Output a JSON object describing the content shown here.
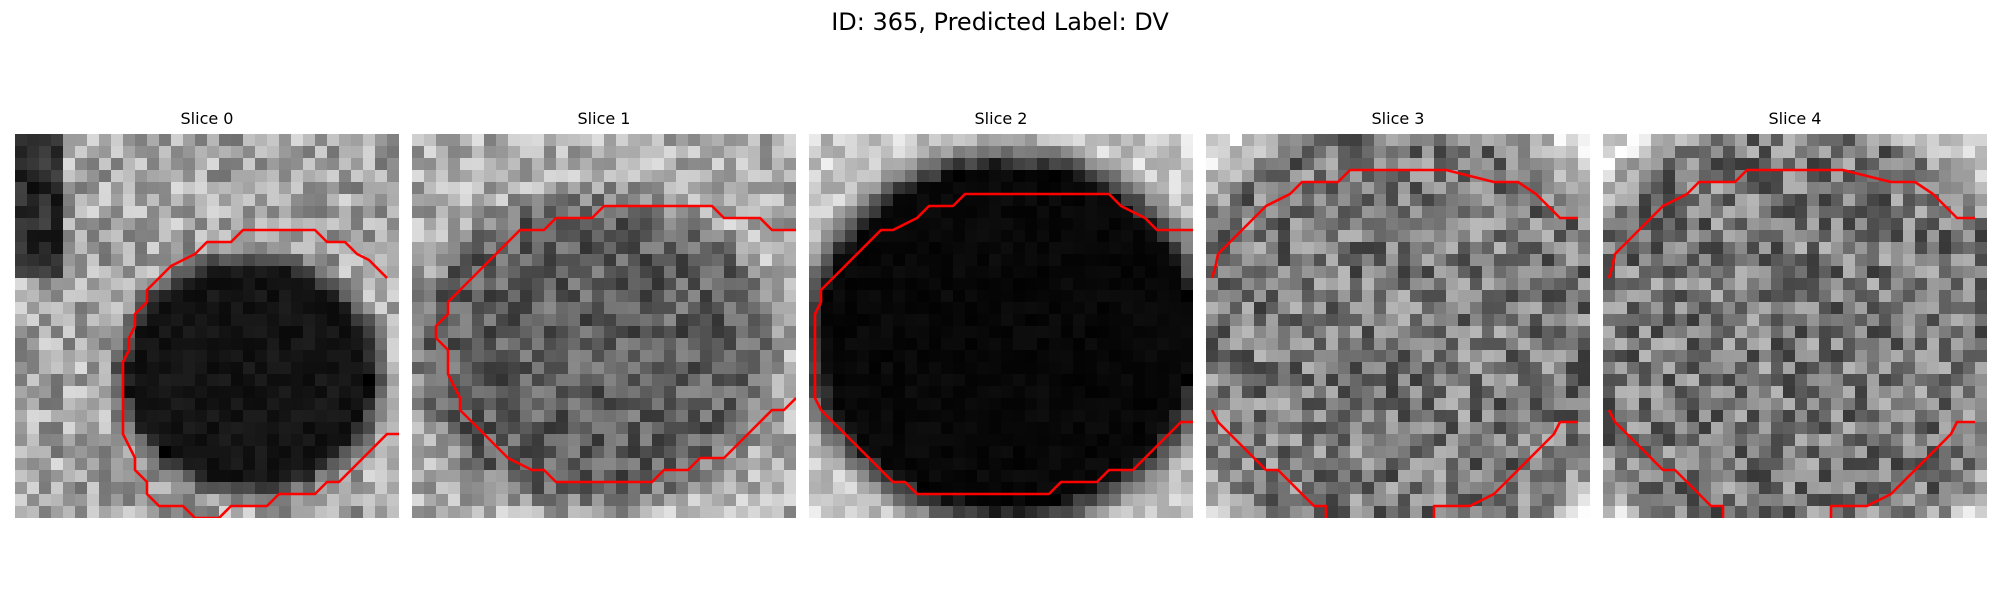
{
  "figure": {
    "title": "ID: 365, Predicted Label: DV"
  },
  "panels": [
    {
      "title": "Slice 0",
      "contour_color": "#ff0000"
    },
    {
      "title": "Slice 1",
      "contour_color": "#ff0000"
    },
    {
      "title": "Slice 2",
      "contour_color": "#ff0000"
    },
    {
      "title": "Slice 3",
      "contour_color": "#ff0000"
    },
    {
      "title": "Slice 4",
      "contour_color": "#ff0000"
    }
  ]
}
